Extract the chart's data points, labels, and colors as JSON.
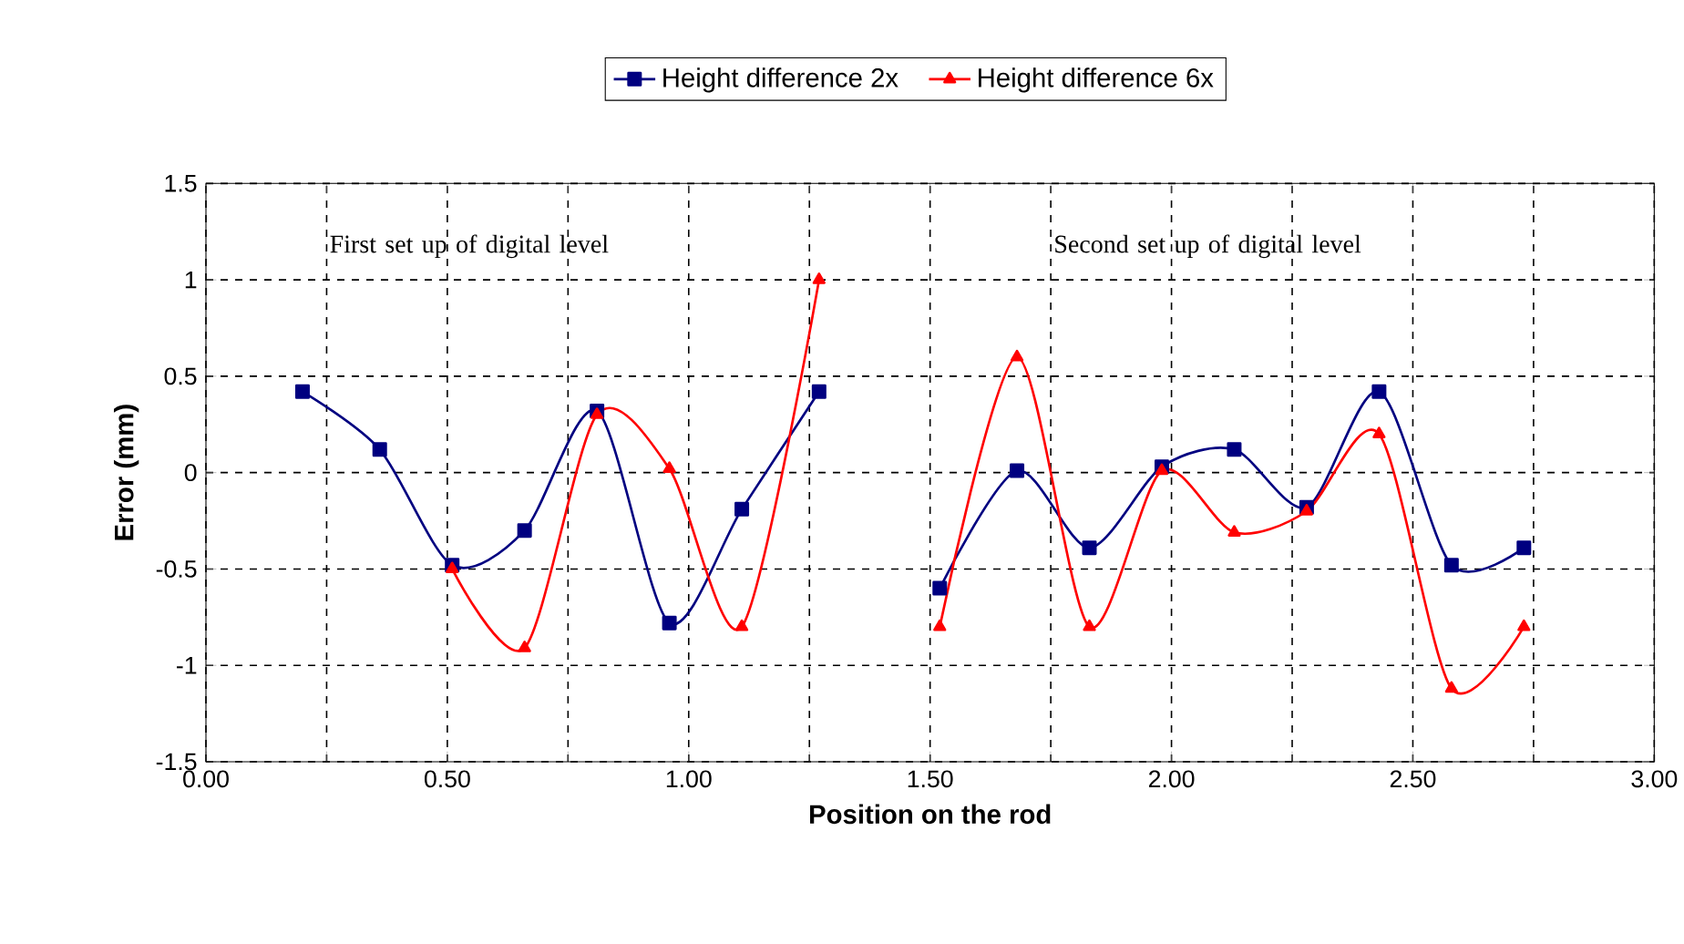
{
  "chart_data": {
    "type": "line",
    "xlabel": "Position on the rod",
    "ylabel": "Error (mm)",
    "xlim": [
      0,
      3
    ],
    "ylim": [
      -1.5,
      1.5
    ],
    "xticks": [
      {
        "value": 0,
        "label": "0.00"
      },
      {
        "value": 0.25,
        "label": null
      },
      {
        "value": 0.5,
        "label": "0.50"
      },
      {
        "value": 0.75,
        "label": null
      },
      {
        "value": 1,
        "label": "1.00"
      },
      {
        "value": 1.25,
        "label": null
      },
      {
        "value": 1.5,
        "label": "1.50"
      },
      {
        "value": 1.75,
        "label": null
      },
      {
        "value": 2,
        "label": "2.00"
      },
      {
        "value": 2.25,
        "label": null
      },
      {
        "value": 2.5,
        "label": "2.50"
      },
      {
        "value": 2.75,
        "label": null
      },
      {
        "value": 3,
        "label": "3.00"
      }
    ],
    "yticks": [
      -1.5,
      -1,
      -0.5,
      0,
      0.5,
      1,
      1.5
    ],
    "grid": true,
    "legend": "top",
    "line_style": "solid",
    "annotations": [
      "First set up of digital level",
      "Second set up of digital level"
    ],
    "series": [
      {
        "name": "Height difference 2x",
        "color": "#000080",
        "marker": "square",
        "x": [
          0.2,
          0.36,
          0.51,
          0.66,
          0.81,
          0.96,
          1.11,
          1.27,
          1.4,
          1.52,
          1.68,
          1.83,
          1.98,
          2.13,
          2.28,
          2.43,
          2.58,
          2.73
        ],
        "values": [
          0.42,
          0.12,
          -0.48,
          -0.3,
          0.32,
          -0.78,
          -0.19,
          0.42,
          null,
          -0.6,
          0.01,
          -0.39,
          0.03,
          0.12,
          -0.18,
          0.42,
          -0.48,
          -0.39
        ]
      },
      {
        "name": "Height difference 6x",
        "color": "#ff0000",
        "marker": "triangle",
        "x": [
          0.51,
          0.66,
          0.81,
          0.96,
          1.11,
          1.27,
          1.4,
          1.52,
          1.68,
          1.83,
          1.98,
          2.13,
          2.28,
          2.43,
          2.58,
          2.73
        ],
        "values": [
          -0.5,
          -0.91,
          0.3,
          0.02,
          -0.8,
          1.0,
          null,
          -0.8,
          0.6,
          -0.8,
          0.01,
          -0.31,
          -0.2,
          0.2,
          -1.12,
          -0.8
        ]
      }
    ]
  }
}
